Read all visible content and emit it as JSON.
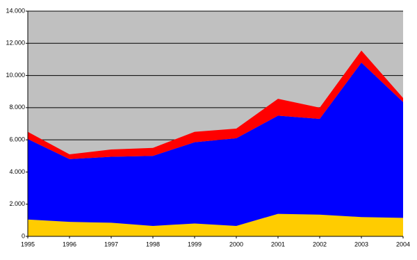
{
  "chart_data": {
    "type": "stacked_area",
    "categories": [
      "1995",
      "1996",
      "1997",
      "1998",
      "1999",
      "2000",
      "2001",
      "2002",
      "2003",
      "2004"
    ],
    "series": [
      {
        "color": "#ffcc00",
        "values": [
          1050,
          900,
          850,
          650,
          800,
          650,
          1400,
          1350,
          1200,
          1150
        ]
      },
      {
        "color": "#0000ff",
        "values": [
          5000,
          3900,
          4100,
          4350,
          5050,
          5450,
          6100,
          5950,
          9600,
          7200
        ]
      },
      {
        "color": "#ff0000",
        "values": [
          450,
          300,
          450,
          500,
          650,
          600,
          1050,
          700,
          750,
          250
        ]
      }
    ],
    "ylim": [
      0,
      14000
    ],
    "yticks": [
      0,
      {
        "value": 2000,
        "label": "2.000"
      },
      {
        "value": 4000,
        "label": "4.000"
      },
      {
        "value": 6000,
        "label": "6.000"
      },
      {
        "value": 8000,
        "label": "8.000"
      },
      {
        "value": 10000,
        "label": "10.000"
      },
      {
        "value": 12000,
        "label": "12.000"
      },
      {
        "value": 14000,
        "label": "14.000"
      }
    ],
    "grid": true,
    "plot_background": "#c0c0c0"
  }
}
